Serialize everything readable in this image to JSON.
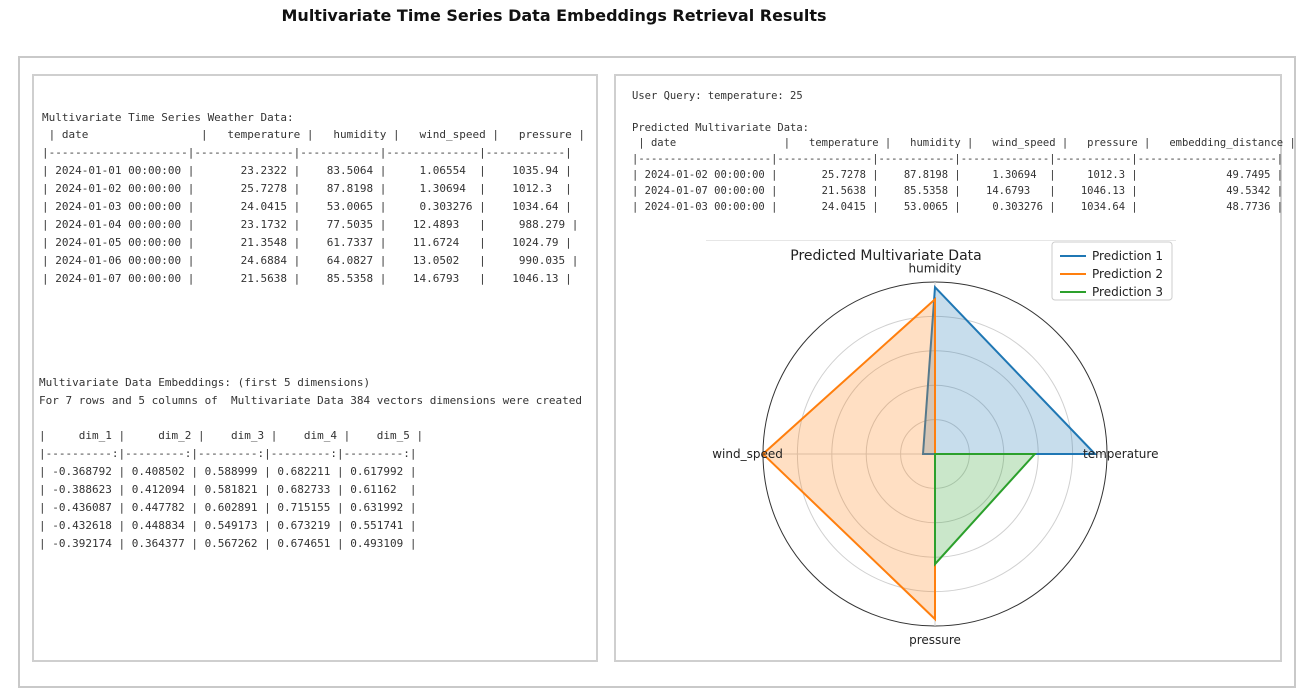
{
  "page_title": "Multivariate Time Series Data Embeddings Retrieval Results",
  "left": {
    "weather_heading": "Multivariate Time Series Weather Data:",
    "weather_table_lines": [
      " | date                 |   temperature |   humidity |   wind_speed |   pressure |",
      "|---------------------|---------------|------------|--------------|------------|",
      "| 2024-01-01 00:00:00 |       23.2322 |    83.5064 |     1.06554  |    1035.94 |",
      "| 2024-01-02 00:00:00 |       25.7278 |    87.8198 |     1.30694  |    1012.3  |",
      "| 2024-01-03 00:00:00 |       24.0415 |    53.0065 |     0.303276 |    1034.64 |",
      "| 2024-01-04 00:00:00 |       23.1732 |    77.5035 |    12.4893   |     988.279 |",
      "| 2024-01-05 00:00:00 |       21.3548 |    61.7337 |    11.6724   |    1024.79 |",
      "| 2024-01-06 00:00:00 |       24.6884 |    64.0827 |    13.0502   |     990.035 |",
      "| 2024-01-07 00:00:00 |       21.5638 |    85.5358 |    14.6793   |    1046.13 |"
    ],
    "embeddings_heading": "Multivariate Data Embeddings: (first 5 dimensions)",
    "embeddings_note": "For 7 rows and 5 columns of  Multivariate Data 384 vectors dimensions were created",
    "embeddings_table_lines": [
      "|     dim_1 |     dim_2 |    dim_3 |    dim_4 |    dim_5 |",
      "|----------:|---------:|---------:|---------:|---------:|",
      "| -0.368792 | 0.408502 | 0.588999 | 0.682211 | 0.617992 |",
      "| -0.388623 | 0.412094 | 0.581821 | 0.682733 | 0.61162  |",
      "| -0.436087 | 0.447782 | 0.602891 | 0.715155 | 0.631992 |",
      "| -0.432618 | 0.448834 | 0.549173 | 0.673219 | 0.551741 |",
      "| -0.392174 | 0.364377 | 0.567262 | 0.674651 | 0.493109 |"
    ]
  },
  "right": {
    "user_query": "User Query: temperature: 25",
    "predicted_heading": "Predicted Multivariate Data:",
    "predicted_table_lines": [
      " | date                 |   temperature |   humidity |   wind_speed |   pressure |   embedding_distance |",
      "|---------------------|---------------|------------|--------------|------------|----------------------|",
      "| 2024-01-02 00:00:00 |       25.7278 |    87.8198 |     1.30694  |     1012.3 |              49.7495 |",
      "| 2024-01-07 00:00:00 |       21.5638 |    85.5358 |    14.6793   |    1046.13 |              49.5342 |",
      "| 2024-01-03 00:00:00 |       24.0415 |    53.0065 |     0.303276 |    1034.64 |              48.7736 |"
    ]
  },
  "chart_data": {
    "type": "radar",
    "title": "Predicted Multivariate Data",
    "axes": [
      "temperature",
      "humidity",
      "wind_speed",
      "pressure"
    ],
    "rlim": [
      0,
      1
    ],
    "grid": true,
    "legend_position": "top-right",
    "series": [
      {
        "name": "Prediction 1",
        "color": "#1f77b4",
        "values": [
          0.93,
          0.97,
          0.07,
          0.0
        ]
      },
      {
        "name": "Prediction 2",
        "color": "#ff7f0e",
        "values": [
          0.0,
          0.9,
          1.0,
          0.96
        ]
      },
      {
        "name": "Prediction 3",
        "color": "#2ca02c",
        "values": [
          0.58,
          0.0,
          0.0,
          0.64
        ]
      }
    ]
  }
}
